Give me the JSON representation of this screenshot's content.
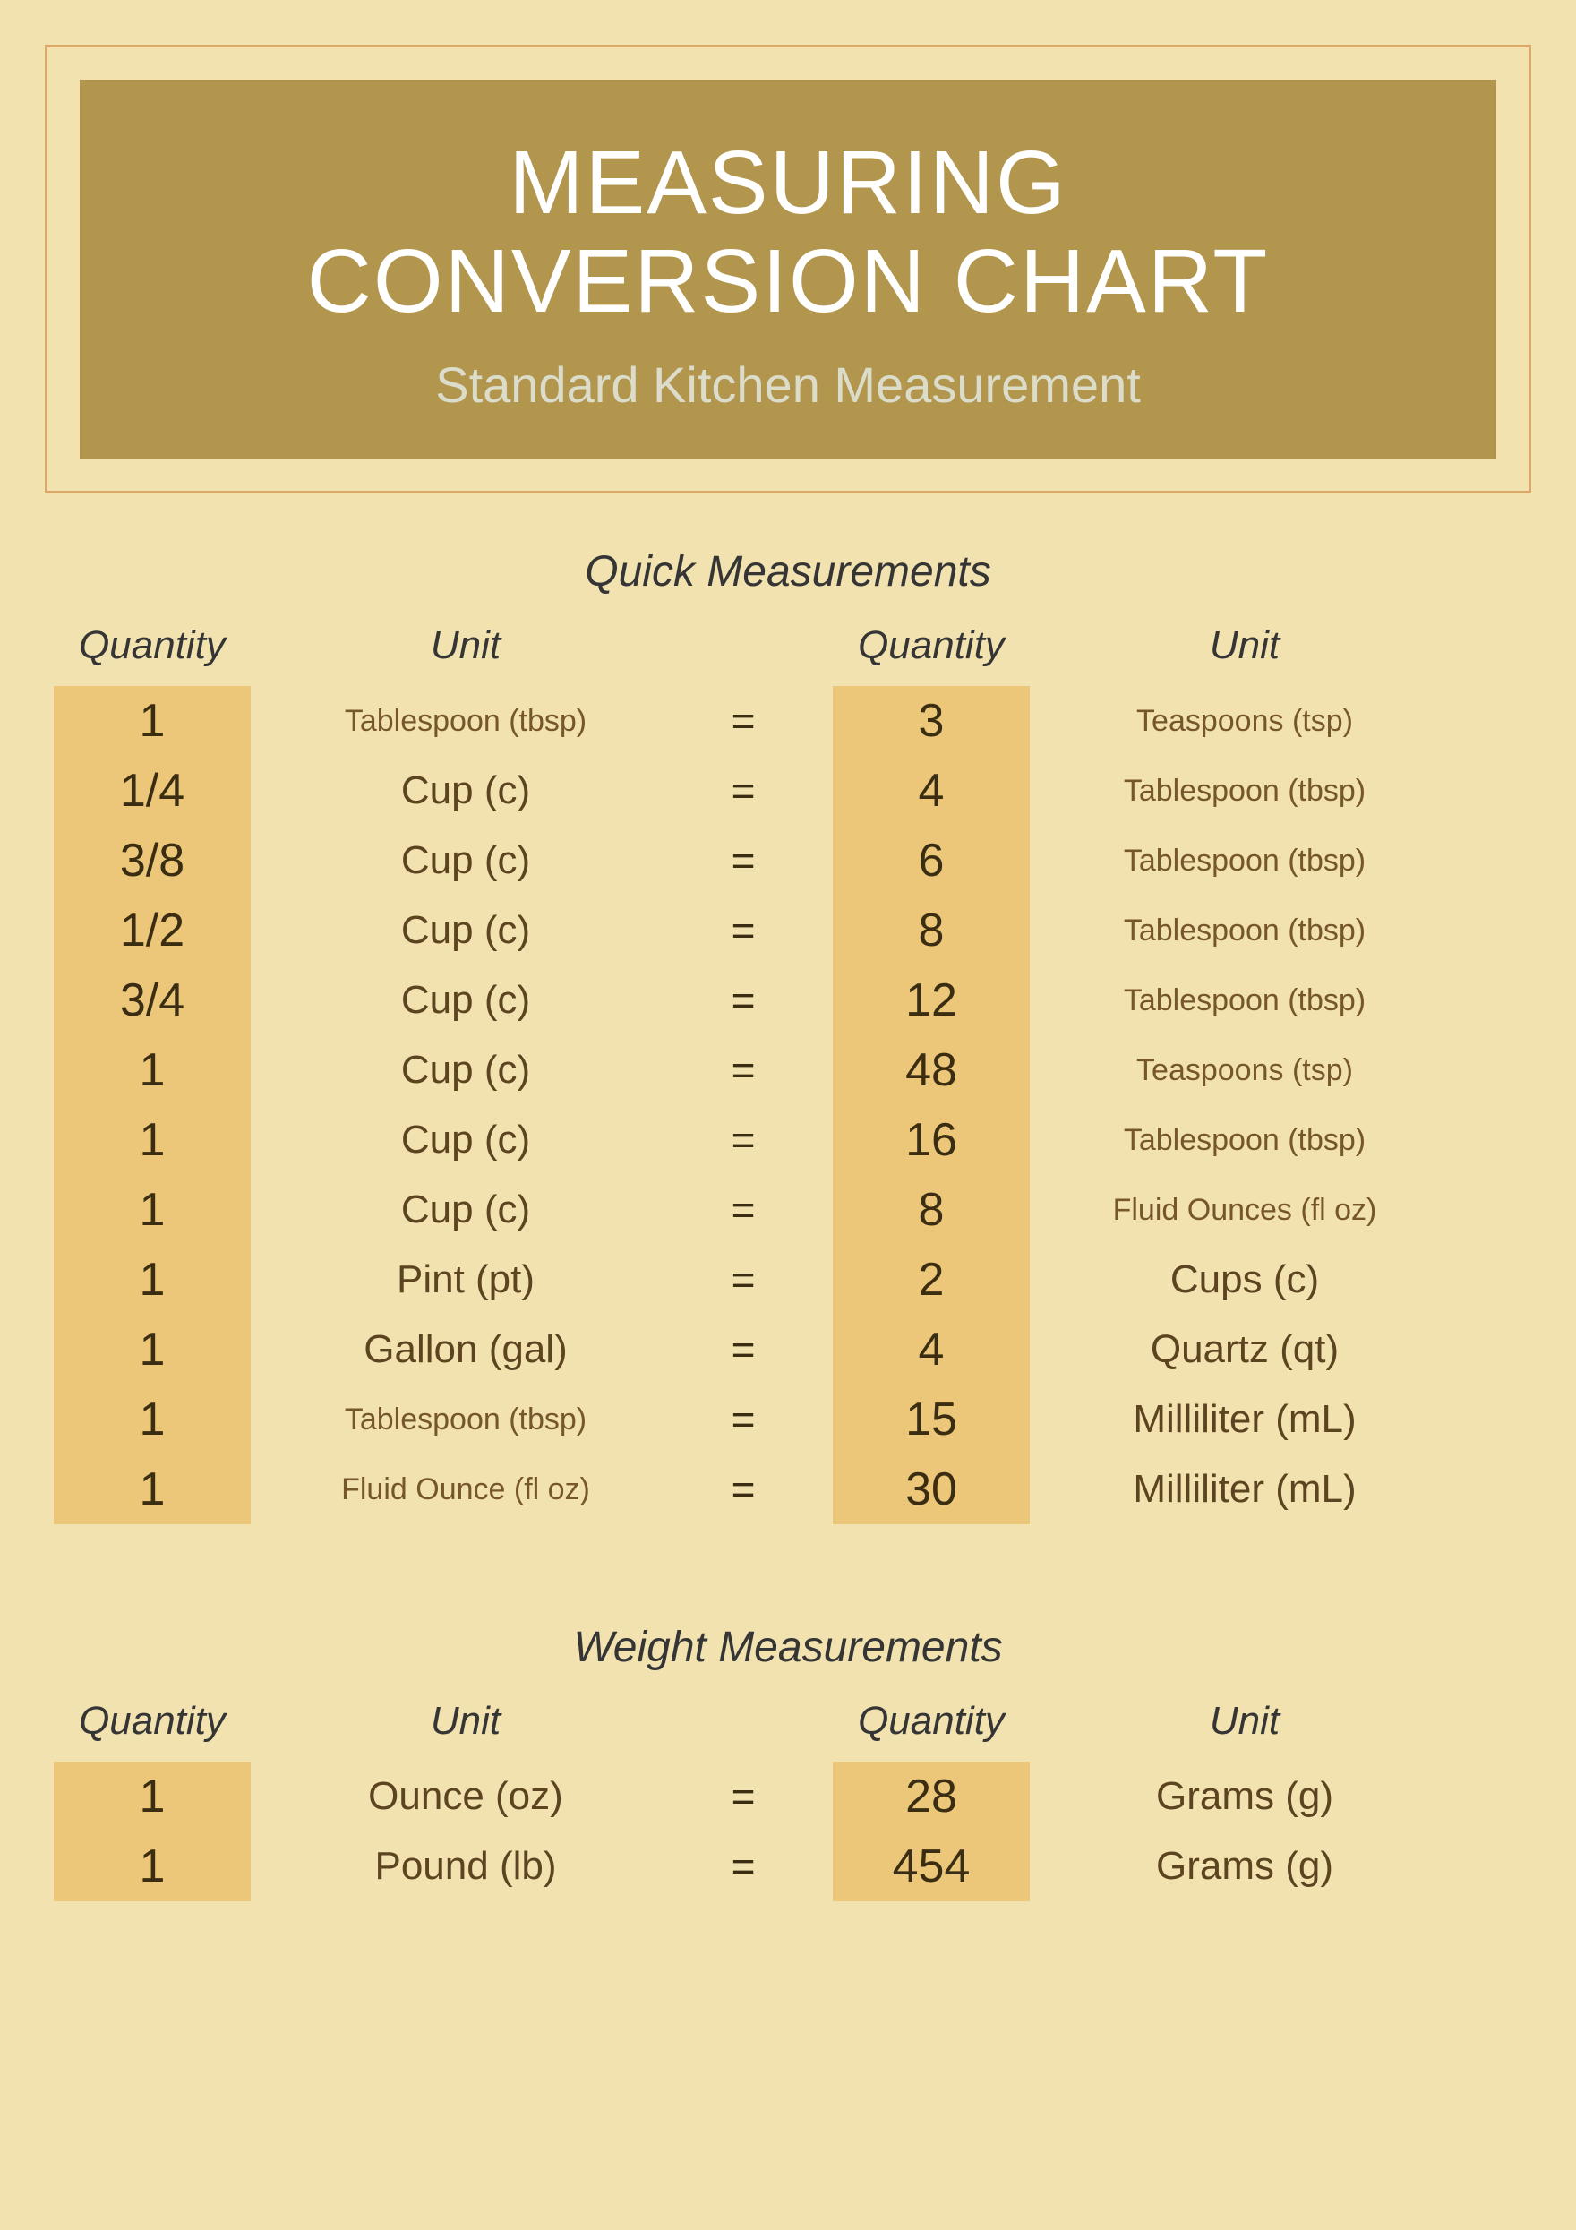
{
  "header": {
    "title_line1": "MEASURING",
    "title_line2": "CONVERSION CHART",
    "subtitle": "Standard Kitchen Measurement",
    "title_bg": "#b2964d",
    "title_color": "#ffffff",
    "subtitle_color": "#dcdccb",
    "frame_border_color": "#d9a96b"
  },
  "page": {
    "background": "#f2e2b0",
    "qty_col_bg": "#ecc779",
    "text_color": "#353535",
    "data_text_color": "#5c4420"
  },
  "columns": {
    "qty": "Quantity",
    "unit": "Unit"
  },
  "sections": {
    "quick": {
      "title": "Quick Measurements",
      "rows": [
        {
          "q1": "1",
          "u1": "Tablespoon (tbsp)",
          "u1_size": "small",
          "q2": "3",
          "u2": "Teaspoons (tsp)",
          "u2_size": "small"
        },
        {
          "q1": "1/4",
          "u1": "Cup (c)",
          "u1_size": "med",
          "q2": "4",
          "u2": "Tablespoon (tbsp)",
          "u2_size": "small"
        },
        {
          "q1": "3/8",
          "u1": "Cup (c)",
          "u1_size": "med",
          "q2": "6",
          "u2": "Tablespoon (tbsp)",
          "u2_size": "small"
        },
        {
          "q1": "1/2",
          "u1": "Cup (c)",
          "u1_size": "med",
          "q2": "8",
          "u2": "Tablespoon (tbsp)",
          "u2_size": "small"
        },
        {
          "q1": "3/4",
          "u1": "Cup (c)",
          "u1_size": "med",
          "q2": "12",
          "u2": "Tablespoon (tbsp)",
          "u2_size": "small"
        },
        {
          "q1": "1",
          "u1": "Cup (c)",
          "u1_size": "med",
          "q2": "48",
          "u2": "Teaspoons (tsp)",
          "u2_size": "small"
        },
        {
          "q1": "1",
          "u1": "Cup (c)",
          "u1_size": "med",
          "q2": "16",
          "u2": "Tablespoon (tbsp)",
          "u2_size": "small"
        },
        {
          "q1": "1",
          "u1": "Cup (c)",
          "u1_size": "med",
          "q2": "8",
          "u2": "Fluid Ounces (fl oz)",
          "u2_size": "small"
        },
        {
          "q1": "1",
          "u1": "Pint (pt)",
          "u1_size": "med",
          "q2": "2",
          "u2": "Cups (c)",
          "u2_size": "med"
        },
        {
          "q1": "1",
          "u1": "Gallon (gal)",
          "u1_size": "med",
          "q2": "4",
          "u2": "Quartz (qt)",
          "u2_size": "med"
        },
        {
          "q1": "1",
          "u1": "Tablespoon (tbsp)",
          "u1_size": "small",
          "q2": "15",
          "u2": "Milliliter (mL)",
          "u2_size": "med"
        },
        {
          "q1": "1",
          "u1": "Fluid Ounce (fl oz)",
          "u1_size": "small",
          "q2": "30",
          "u2": "Milliliter (mL)",
          "u2_size": "med"
        }
      ]
    },
    "weight": {
      "title": "Weight Measurements",
      "rows": [
        {
          "q1": "1",
          "u1": "Ounce (oz)",
          "u1_size": "med",
          "q2": "28",
          "u2": "Grams (g)",
          "u2_size": "med"
        },
        {
          "q1": "1",
          "u1": "Pound (lb)",
          "u1_size": "med",
          "q2": "454",
          "u2": "Grams (g)",
          "u2_size": "med"
        }
      ]
    }
  },
  "equals": "="
}
